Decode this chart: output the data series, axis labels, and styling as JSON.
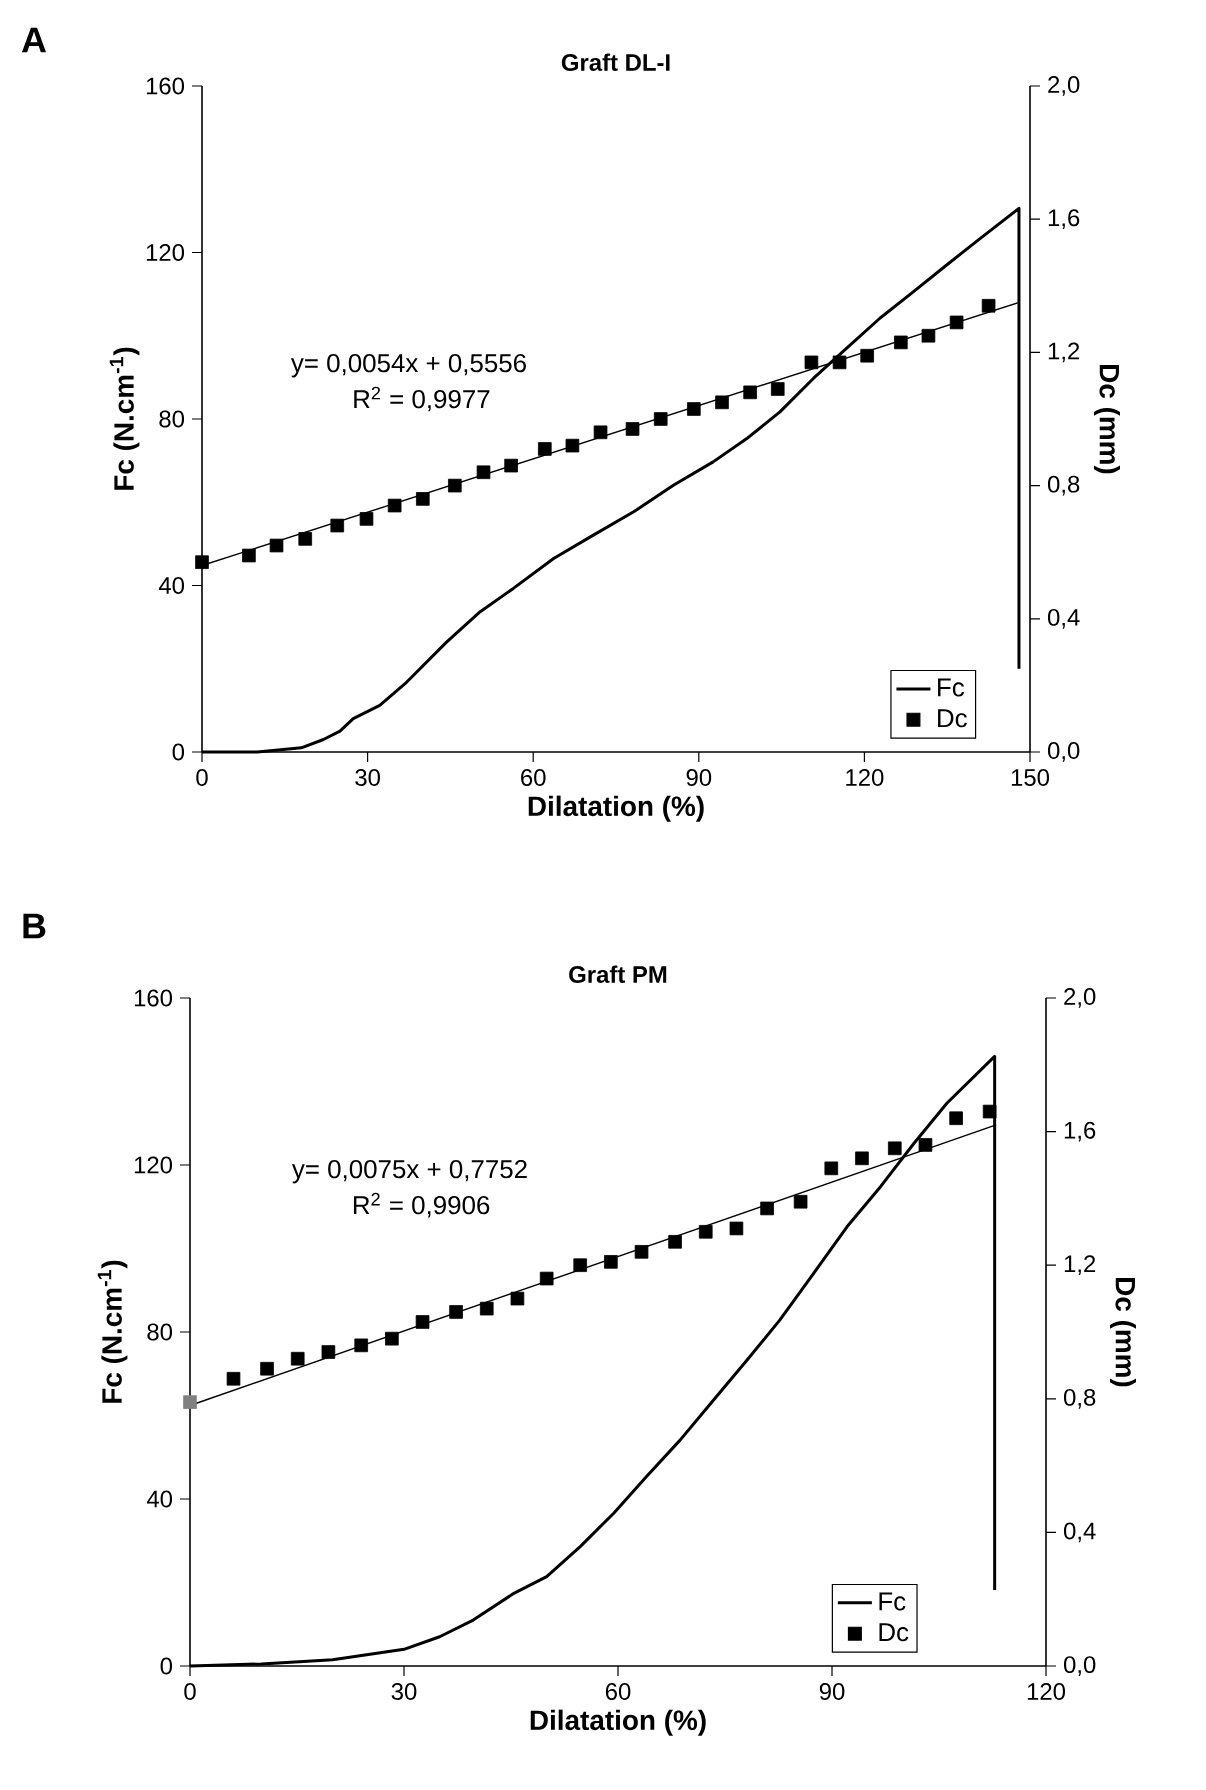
{
  "chart_data": [
    {
      "type": "line",
      "title": "Graft DL-I",
      "xlabel": "Dilatation (%)",
      "ylabel": "Fc (N.cm$^{-1}$)",
      "y2label": "Dc (mm)",
      "annotations": [
        "A",
        "y= 0,0054x + 0,5556",
        "R$^{2}$ = 0,9977"
      ],
      "xlim": [
        0,
        150
      ],
      "xticks": [
        0,
        30,
        60,
        90,
        120,
        150
      ],
      "ylim": [
        0,
        160
      ],
      "yticks": [
        0,
        40,
        80,
        120,
        160
      ],
      "y2lim": [
        0,
        2
      ],
      "y2ticks": [
        {
          "value": 0,
          "label": "0,0"
        },
        {
          "value": 0.4,
          "label": "0,4"
        },
        {
          "value": 0.8,
          "label": "0,8"
        },
        {
          "value": 1.2,
          "label": "1,2"
        },
        {
          "value": 1.6,
          "label": "1,6"
        },
        {
          "value": 2,
          "label": "2,0"
        }
      ],
      "legend": "bottom right",
      "series": [
        {
          "name": "Fc",
          "type": "line",
          "color": "#000000",
          "x": [
            0,
            10,
            18,
            22,
            25,
            27.4,
            32.2,
            37.1,
            44.3,
            50.4,
            56.4,
            63.7,
            70.9,
            78.2,
            85.4,
            92.6,
            98.7,
            104.7,
            110.8,
            116.8,
            122.8,
            128.9,
            134.9,
            141,
            148,
            148
          ],
          "values": [
            0,
            0,
            1,
            3,
            5,
            8,
            11.2,
            16.8,
            26.4,
            33.7,
            39.3,
            46.5,
            52.1,
            57.7,
            64.1,
            69.7,
            75.3,
            81.7,
            89.8,
            97,
            104.2,
            110.6,
            117,
            123.4,
            130.6,
            20
          ]
        },
        {
          "name": "Dc",
          "type": "scatter",
          "axis": "y2",
          "marker": "square",
          "color": "#000000",
          "x": [
            0,
            8.5,
            13.5,
            18.7,
            24.5,
            29.8,
            34.9,
            40,
            45.8,
            51,
            56,
            62.1,
            67.1,
            72.2,
            78,
            83.1,
            89.1,
            94.2,
            99.3,
            104.3,
            110.4,
            115.5,
            120.5,
            126.6,
            131.6,
            136.7,
            142.5
          ],
          "values": [
            0.57,
            0.59,
            0.62,
            0.64,
            0.68,
            0.7,
            0.74,
            0.76,
            0.8,
            0.84,
            0.86,
            0.91,
            0.92,
            0.96,
            0.97,
            1,
            1.03,
            1.05,
            1.08,
            1.09,
            1.17,
            1.17,
            1.19,
            1.23,
            1.25,
            1.29,
            1.34
          ]
        },
        {
          "type": "line",
          "axis": "y2",
          "color": "#000000",
          "x": [
            0,
            148
          ],
          "values": [
            0.56,
            1.35
          ]
        }
      ]
    },
    {
      "type": "line",
      "title": "Graft PM",
      "xlabel": "Dilatation (%)",
      "ylabel": "Fc (N.cm$^{-1}$)",
      "y2label": "Dc (mm)",
      "annotations": [
        "B",
        "y= 0,0075x + 0,7752",
        "R$^{2}$ = 0,9906"
      ],
      "xlim": [
        0,
        120
      ],
      "xticks": [
        0,
        30,
        60,
        90,
        120
      ],
      "ylim": [
        0,
        160
      ],
      "yticks": [
        0,
        40,
        80,
        120,
        160
      ],
      "y2lim": [
        0,
        2
      ],
      "y2ticks": [
        {
          "value": 0,
          "label": "0,0"
        },
        {
          "value": 0.4,
          "label": "0,4"
        },
        {
          "value": 0.8,
          "label": "0,8"
        },
        {
          "value": 1.2,
          "label": "1,2"
        },
        {
          "value": 1.6,
          "label": "1,6"
        },
        {
          "value": 2,
          "label": "2,0"
        }
      ],
      "legend": "bottom right",
      "series": [
        {
          "name": "Fc",
          "type": "line",
          "color": "#000000",
          "x": [
            0,
            10,
            20,
            30,
            35,
            39.7,
            45.4,
            50,
            54.7,
            59.4,
            64,
            68.7,
            73.4,
            78.1,
            82.7,
            87.4,
            92.1,
            96.8,
            101.5,
            106.1,
            112.8,
            112.8
          ],
          "values": [
            0,
            0.5,
            1.5,
            4,
            7,
            11,
            17.4,
            21.4,
            28.6,
            36.6,
            45.4,
            54.1,
            63.7,
            73.3,
            82.9,
            94,
            105.2,
            114.8,
            125.2,
            134.8,
            146,
            18.2
          ]
        },
        {
          "name": "Dc",
          "type": "scatter",
          "axis": "y2",
          "marker": "square",
          "colors": [
            "#808080",
            "#000000",
            "#000000",
            "#000000",
            "#000000",
            "#000000",
            "#000000",
            "#000000",
            "#000000",
            "#000000",
            "#000000",
            "#000000",
            "#000000",
            "#000000",
            "#000000",
            "#000000",
            "#000000",
            "#000000",
            "#000000",
            "#000000",
            "#000000",
            "#000000",
            "#000000",
            "#000000",
            "#000000",
            "#000000"
          ],
          "x": [
            0,
            6.1,
            10.8,
            15.1,
            19.4,
            24,
            28.3,
            32.6,
            37.3,
            41.6,
            45.9,
            50,
            54.7,
            59,
            63.3,
            68,
            72.3,
            76.6,
            80.9,
            85.6,
            89.9,
            94.2,
            98.8,
            103.1,
            107.4,
            112.1
          ],
          "values": [
            0.79,
            0.86,
            0.89,
            0.92,
            0.94,
            0.96,
            0.98,
            1.03,
            1.06,
            1.07,
            1.1,
            1.16,
            1.2,
            1.21,
            1.24,
            1.27,
            1.3,
            1.31,
            1.37,
            1.39,
            1.49,
            1.52,
            1.55,
            1.56,
            1.64,
            1.66
          ]
        },
        {
          "type": "line",
          "axis": "y2",
          "color": "#000000",
          "x": [
            0,
            113
          ],
          "values": [
            0.78,
            1.62
          ]
        }
      ]
    }
  ]
}
